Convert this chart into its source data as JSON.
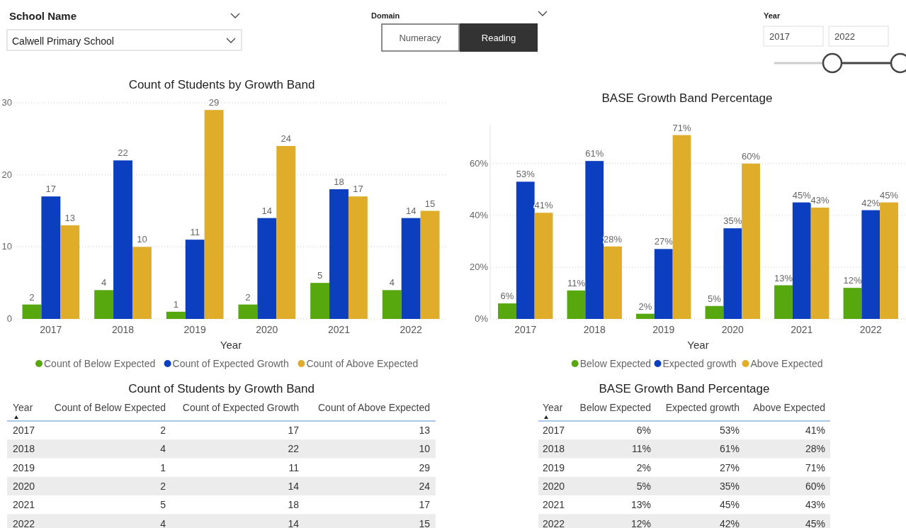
{
  "chart_data": [
    {
      "type": "other",
      "annotations": [
        "School Name",
        "Calwell Primary School",
        "Domain",
        "Numeracy",
        "Reading",
        "Year",
        "2017",
        "2022"
      ]
    },
    {
      "type": "bar",
      "title": "Count of Students by Growth Band",
      "xlabel": "Year",
      "categories": [
        "2017",
        "2018",
        "2019",
        "2020",
        "2021",
        "2022"
      ],
      "series": [
        {
          "name": "Count of Below Expected",
          "color": "#57a80f",
          "values": [
            2,
            4,
            1,
            2,
            5,
            4
          ],
          "value_labels": [
            "2",
            "4",
            "1",
            "2",
            "5",
            "4"
          ]
        },
        {
          "name": "Count of Expected Growth",
          "color": "#0c3ec0",
          "values": [
            17,
            22,
            11,
            14,
            18,
            14
          ],
          "value_labels": [
            "17",
            "22",
            "11",
            "14",
            "18",
            "14"
          ]
        },
        {
          "name": "Count of Above Expected",
          "color": "#e0ad2a",
          "values": [
            13,
            10,
            29,
            24,
            17,
            15
          ],
          "value_labels": [
            "13",
            "10",
            "29",
            "24",
            "17",
            "15"
          ]
        }
      ],
      "ylim": [
        0,
        30
      ],
      "yticks": [
        0,
        10,
        20,
        30
      ],
      "grid": "y",
      "legend": "bottom"
    },
    {
      "type": "bar",
      "title": "BASE Growth Band Percentage",
      "xlabel": "Year",
      "categories": [
        "2017",
        "2018",
        "2019",
        "2020",
        "2021",
        "2022"
      ],
      "series": [
        {
          "name": "Below Expected",
          "color": "#57a80f",
          "values": [
            6,
            11,
            2,
            5,
            13,
            12
          ],
          "value_labels": [
            "6%",
            "11%",
            "2%",
            "5%",
            "13%",
            "12%"
          ]
        },
        {
          "name": "Expected growth",
          "color": "#0c3ec0",
          "values": [
            53,
            61,
            27,
            35,
            45,
            42
          ],
          "value_labels": [
            "53%",
            "61%",
            "27%",
            "35%",
            "45%",
            "42%"
          ]
        },
        {
          "name": "Above Expected",
          "color": "#e0ad2a",
          "values": [
            41,
            28,
            71,
            60,
            43,
            45
          ],
          "value_labels": [
            "41%",
            "28%",
            "71%",
            "60%",
            "43%",
            "45%"
          ]
        }
      ],
      "ylim": [
        0,
        75
      ],
      "yticks": [
        {
          "value": 0,
          "label": "0%"
        },
        {
          "value": 20,
          "label": "20%"
        },
        {
          "value": 40,
          "label": "40%"
        },
        {
          "value": 60,
          "label": "60%"
        }
      ],
      "grid": "y",
      "legend": "bottom"
    }
  ]
}
